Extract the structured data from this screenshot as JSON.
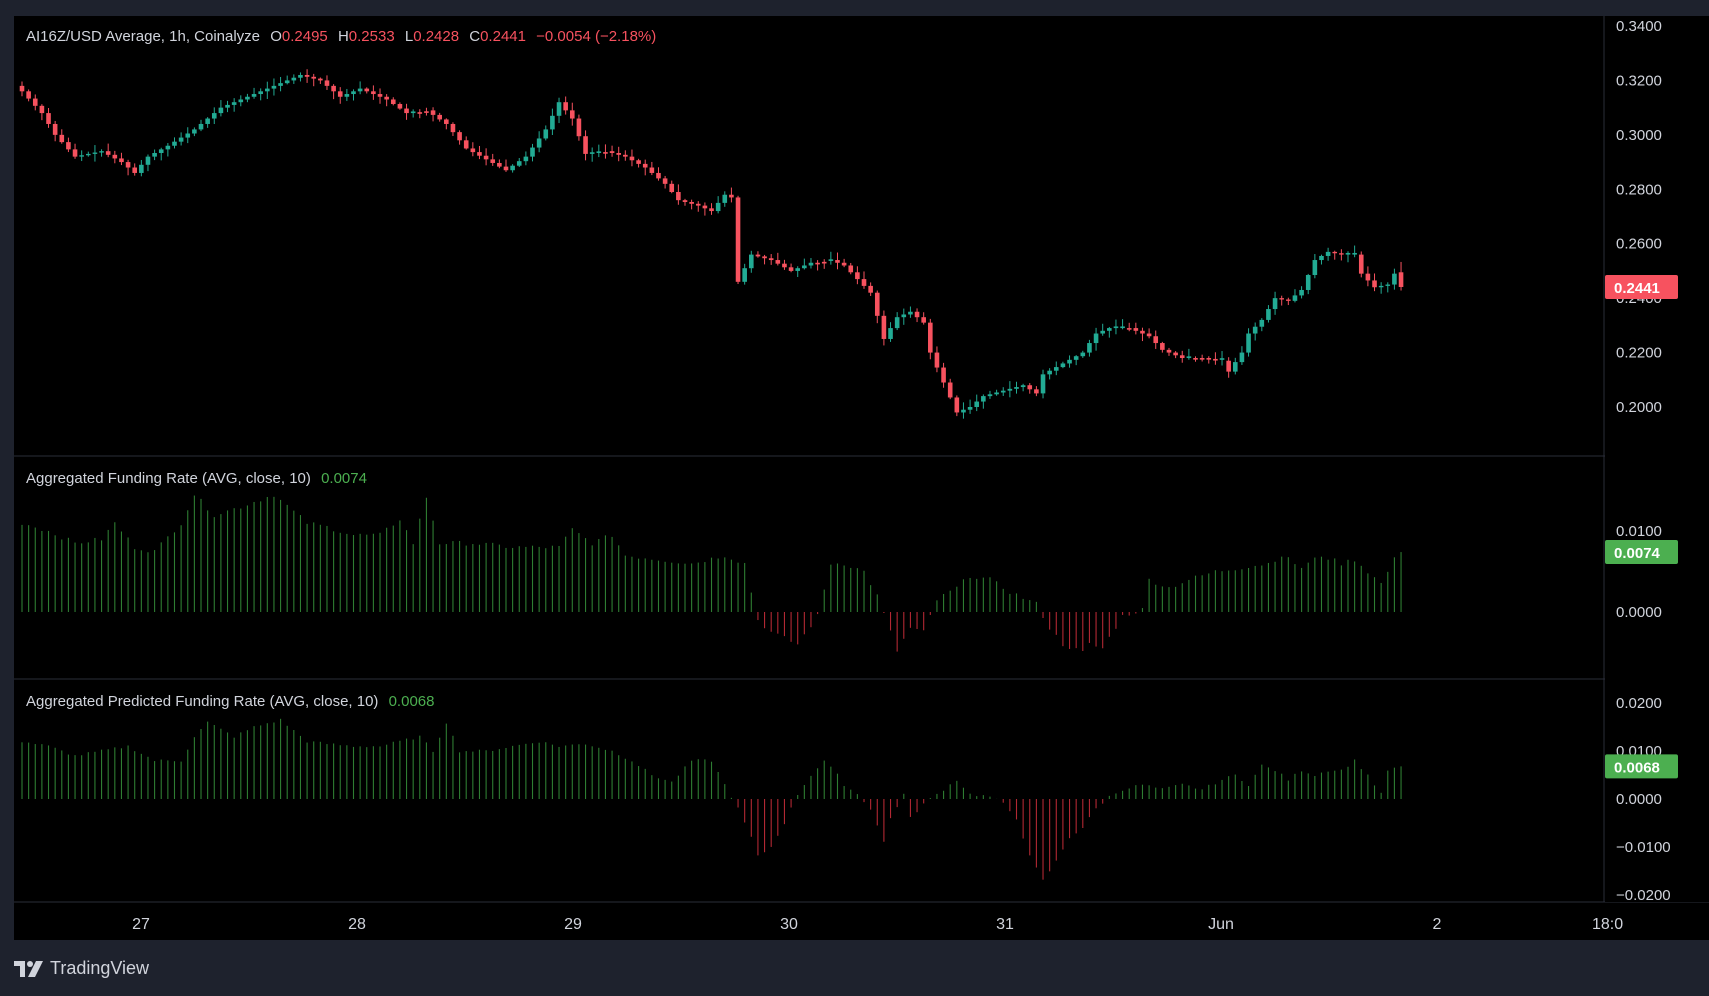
{
  "header": {
    "symbol": "AI16Z/USD Average, 1h, Coinalyze",
    "o_label": "O",
    "o_value": "0.2495",
    "h_label": "H",
    "h_value": "0.2533",
    "l_label": "L",
    "l_value": "0.2428",
    "c_label": "C",
    "c_value": "0.2441",
    "change": "−0.0054 (−2.18%)"
  },
  "funding": {
    "title": "Aggregated Funding Rate (AVG, close, 10)",
    "value": "0.0074"
  },
  "predicted": {
    "title": "Aggregated Predicted Funding Rate (AVG, close, 10)",
    "value": "0.0068"
  },
  "price_axis": {
    "ticks": [
      "0.3400",
      "0.3200",
      "0.3000",
      "0.2800",
      "0.2600",
      "0.2400",
      "0.2200",
      "0.2000"
    ],
    "last_price": "0.2441"
  },
  "funding_axis": {
    "ticks": [
      "0.0100",
      "0.0000"
    ],
    "last": "0.0074"
  },
  "predicted_axis": {
    "ticks": [
      "0.0200",
      "0.0100",
      "0.0000",
      "−0.0100",
      "−0.0200"
    ],
    "last": "0.0068"
  },
  "time_axis": {
    "labels": [
      "27",
      "28",
      "29",
      "30",
      "31",
      "Jun",
      "2",
      "18:0"
    ]
  },
  "branding": {
    "name": "TradingView"
  },
  "colors": {
    "up": "#22ab94",
    "down": "#f7525f",
    "hist_pos": "#2e7d32",
    "hist_neg": "#b22833",
    "background": "#000000",
    "green_badge": "#4caf50",
    "red_badge": "#f7525f"
  },
  "chart_data": [
    {
      "type": "candlestick",
      "title": "AI16Z/USD Average, 1h, Coinalyze",
      "timeframe": "1h",
      "x_labels": [
        "27",
        "28",
        "29",
        "30",
        "31",
        "Jun",
        "2",
        "18:0"
      ],
      "ylim": [
        0.18,
        0.343
      ],
      "grid": false,
      "keypoints_close": [
        [
          0,
          0.316
        ],
        [
          3,
          0.308
        ],
        [
          5,
          0.3
        ],
        [
          8,
          0.292
        ],
        [
          12,
          0.294
        ],
        [
          15,
          0.29
        ],
        [
          17,
          0.286
        ],
        [
          19,
          0.292
        ],
        [
          22,
          0.296
        ],
        [
          26,
          0.302
        ],
        [
          30,
          0.31
        ],
        [
          34,
          0.314
        ],
        [
          38,
          0.318
        ],
        [
          42,
          0.322
        ],
        [
          45,
          0.32
        ],
        [
          48,
          0.314
        ],
        [
          51,
          0.317
        ],
        [
          55,
          0.313
        ],
        [
          58,
          0.308
        ],
        [
          61,
          0.309
        ],
        [
          64,
          0.304
        ],
        [
          67,
          0.295
        ],
        [
          70,
          0.291
        ],
        [
          73,
          0.287
        ],
        [
          76,
          0.292
        ],
        [
          79,
          0.302
        ],
        [
          81,
          0.312
        ],
        [
          83,
          0.306
        ],
        [
          85,
          0.293
        ],
        [
          88,
          0.294
        ],
        [
          91,
          0.292
        ],
        [
          94,
          0.288
        ],
        [
          97,
          0.282
        ],
        [
          99,
          0.276
        ],
        [
          102,
          0.274
        ],
        [
          104,
          0.272
        ],
        [
          106,
          0.278
        ],
        [
          107,
          0.277
        ],
        [
          108,
          0.246
        ],
        [
          110,
          0.256
        ],
        [
          113,
          0.254
        ],
        [
          116,
          0.25
        ],
        [
          119,
          0.253
        ],
        [
          122,
          0.254
        ],
        [
          124,
          0.252
        ],
        [
          126,
          0.247
        ],
        [
          128,
          0.242
        ],
        [
          130,
          0.225
        ],
        [
          132,
          0.233
        ],
        [
          134,
          0.235
        ],
        [
          136,
          0.231
        ],
        [
          137,
          0.22
        ],
        [
          139,
          0.209
        ],
        [
          141,
          0.198
        ],
        [
          143,
          0.2
        ],
        [
          145,
          0.204
        ],
        [
          148,
          0.206
        ],
        [
          151,
          0.208
        ],
        [
          153,
          0.205
        ],
        [
          154,
          0.212
        ],
        [
          157,
          0.216
        ],
        [
          160,
          0.22
        ],
        [
          162,
          0.227
        ],
        [
          164,
          0.229
        ],
        [
          167,
          0.229
        ],
        [
          170,
          0.226
        ],
        [
          172,
          0.221
        ],
        [
          175,
          0.218
        ],
        [
          178,
          0.218
        ],
        [
          181,
          0.217
        ],
        [
          182,
          0.213
        ],
        [
          184,
          0.22
        ],
        [
          185,
          0.227
        ],
        [
          187,
          0.232
        ],
        [
          189,
          0.24
        ],
        [
          191,
          0.239
        ],
        [
          193,
          0.243
        ],
        [
          195,
          0.254
        ],
        [
          197,
          0.257
        ],
        [
          199,
          0.256
        ],
        [
          201,
          0.256
        ],
        [
          202,
          0.249
        ],
        [
          204,
          0.244
        ],
        [
          206,
          0.245
        ],
        [
          207,
          0.249
        ],
        [
          208,
          0.2441
        ]
      ],
      "last": {
        "open": 0.2495,
        "high": 0.2533,
        "low": 0.2428,
        "close": 0.2441,
        "change": -0.0054,
        "change_pct": -2.18
      }
    },
    {
      "type": "bar",
      "title": "Aggregated Funding Rate (AVG, close, 10)",
      "ylim": [
        -0.0062,
        0.0158
      ],
      "keypoints": [
        [
          0,
          0.011
        ],
        [
          4,
          0.01
        ],
        [
          8,
          0.0085
        ],
        [
          12,
          0.009
        ],
        [
          14,
          0.011
        ],
        [
          17,
          0.008
        ],
        [
          20,
          0.0075
        ],
        [
          24,
          0.011
        ],
        [
          26,
          0.0145
        ],
        [
          29,
          0.012
        ],
        [
          33,
          0.013
        ],
        [
          38,
          0.0145
        ],
        [
          43,
          0.011
        ],
        [
          46,
          0.0105
        ],
        [
          50,
          0.0095
        ],
        [
          54,
          0.0095
        ],
        [
          57,
          0.0115
        ],
        [
          59,
          0.0085
        ],
        [
          61,
          0.0142
        ],
        [
          63,
          0.0085
        ],
        [
          68,
          0.0085
        ],
        [
          74,
          0.008
        ],
        [
          81,
          0.008
        ],
        [
          83,
          0.0102
        ],
        [
          86,
          0.0085
        ],
        [
          89,
          0.0095
        ],
        [
          91,
          0.007
        ],
        [
          96,
          0.0065
        ],
        [
          101,
          0.006
        ],
        [
          106,
          0.007
        ],
        [
          109,
          0.006
        ],
        [
          111,
          -0.001
        ],
        [
          113,
          -0.0025
        ],
        [
          117,
          -0.004
        ],
        [
          120,
          -0.0005
        ],
        [
          122,
          0.006
        ],
        [
          124,
          0.006
        ],
        [
          127,
          0.005
        ],
        [
          129,
          0.002
        ],
        [
          131,
          -0.0025
        ],
        [
          132,
          -0.0048
        ],
        [
          134,
          -0.002
        ],
        [
          136,
          -0.0025
        ],
        [
          138,
          0.0015
        ],
        [
          141,
          0.003
        ],
        [
          143,
          0.0045
        ],
        [
          146,
          0.004
        ],
        [
          149,
          0.0025
        ],
        [
          153,
          0.001
        ],
        [
          155,
          -0.002
        ],
        [
          157,
          -0.004
        ],
        [
          160,
          -0.005
        ],
        [
          161,
          -0.004
        ],
        [
          163,
          -0.0045
        ],
        [
          166,
          -0.0005
        ],
        [
          169,
          0.0003
        ],
        [
          170,
          0.004
        ],
        [
          173,
          0.003
        ],
        [
          176,
          0.004
        ],
        [
          180,
          0.005
        ],
        [
          184,
          0.0055
        ],
        [
          188,
          0.006
        ],
        [
          190,
          0.007
        ],
        [
          193,
          0.0055
        ],
        [
          196,
          0.007
        ],
        [
          199,
          0.006
        ],
        [
          201,
          0.0065
        ],
        [
          205,
          0.0035
        ],
        [
          207,
          0.0065
        ],
        [
          208,
          0.0074
        ]
      ]
    },
    {
      "type": "bar",
      "title": "Aggregated Predicted Funding Rate (AVG, close, 10)",
      "ylim": [
        -0.0228,
        0.0225
      ],
      "keypoints": [
        [
          0,
          0.012
        ],
        [
          4,
          0.011
        ],
        [
          8,
          0.009
        ],
        [
          12,
          0.01
        ],
        [
          16,
          0.011
        ],
        [
          20,
          0.008
        ],
        [
          24,
          0.008
        ],
        [
          26,
          0.013
        ],
        [
          28,
          0.016
        ],
        [
          32,
          0.013
        ],
        [
          35,
          0.015
        ],
        [
          39,
          0.0165
        ],
        [
          43,
          0.012
        ],
        [
          46,
          0.0115
        ],
        [
          50,
          0.011
        ],
        [
          54,
          0.011
        ],
        [
          57,
          0.012
        ],
        [
          60,
          0.013
        ],
        [
          62,
          0.01
        ],
        [
          64,
          0.016
        ],
        [
          66,
          0.01
        ],
        [
          70,
          0.01
        ],
        [
          74,
          0.011
        ],
        [
          78,
          0.012
        ],
        [
          81,
          0.011
        ],
        [
          85,
          0.0115
        ],
        [
          89,
          0.01
        ],
        [
          92,
          0.008
        ],
        [
          95,
          0.005
        ],
        [
          98,
          0.0035
        ],
        [
          101,
          0.008
        ],
        [
          104,
          0.008
        ],
        [
          106,
          0.003
        ],
        [
          108,
          -0.002
        ],
        [
          110,
          -0.008
        ],
        [
          111,
          -0.012
        ],
        [
          113,
          -0.01
        ],
        [
          115,
          -0.005
        ],
        [
          117,
          0.001
        ],
        [
          119,
          0.005
        ],
        [
          121,
          0.008
        ],
        [
          123,
          0.005
        ],
        [
          124,
          0.003
        ],
        [
          126,
          0.001
        ],
        [
          128,
          -0.002
        ],
        [
          130,
          -0.009
        ],
        [
          131,
          -0.004
        ],
        [
          133,
          0.001
        ],
        [
          134,
          -0.004
        ],
        [
          136,
          -0.001
        ],
        [
          139,
          0.002
        ],
        [
          141,
          0.004
        ],
        [
          143,
          0.001
        ],
        [
          146,
          0.0005
        ],
        [
          148,
          -0.001
        ],
        [
          150,
          -0.004
        ],
        [
          152,
          -0.012
        ],
        [
          154,
          -0.017
        ],
        [
          156,
          -0.013
        ],
        [
          158,
          -0.008
        ],
        [
          160,
          -0.006
        ],
        [
          162,
          -0.002
        ],
        [
          164,
          0.0005
        ],
        [
          166,
          0.002
        ],
        [
          169,
          0.003
        ],
        [
          172,
          0.002
        ],
        [
          175,
          0.003
        ],
        [
          178,
          0.002
        ],
        [
          181,
          0.004
        ],
        [
          183,
          0.005
        ],
        [
          185,
          0.003
        ],
        [
          187,
          0.007
        ],
        [
          189,
          0.006
        ],
        [
          191,
          0.004
        ],
        [
          193,
          0.006
        ],
        [
          195,
          0.005
        ],
        [
          197,
          0.006
        ],
        [
          199,
          0.006
        ],
        [
          201,
          0.008
        ],
        [
          203,
          0.005
        ],
        [
          205,
          0.001
        ],
        [
          206,
          0.006
        ],
        [
          208,
          0.0068
        ]
      ]
    }
  ]
}
